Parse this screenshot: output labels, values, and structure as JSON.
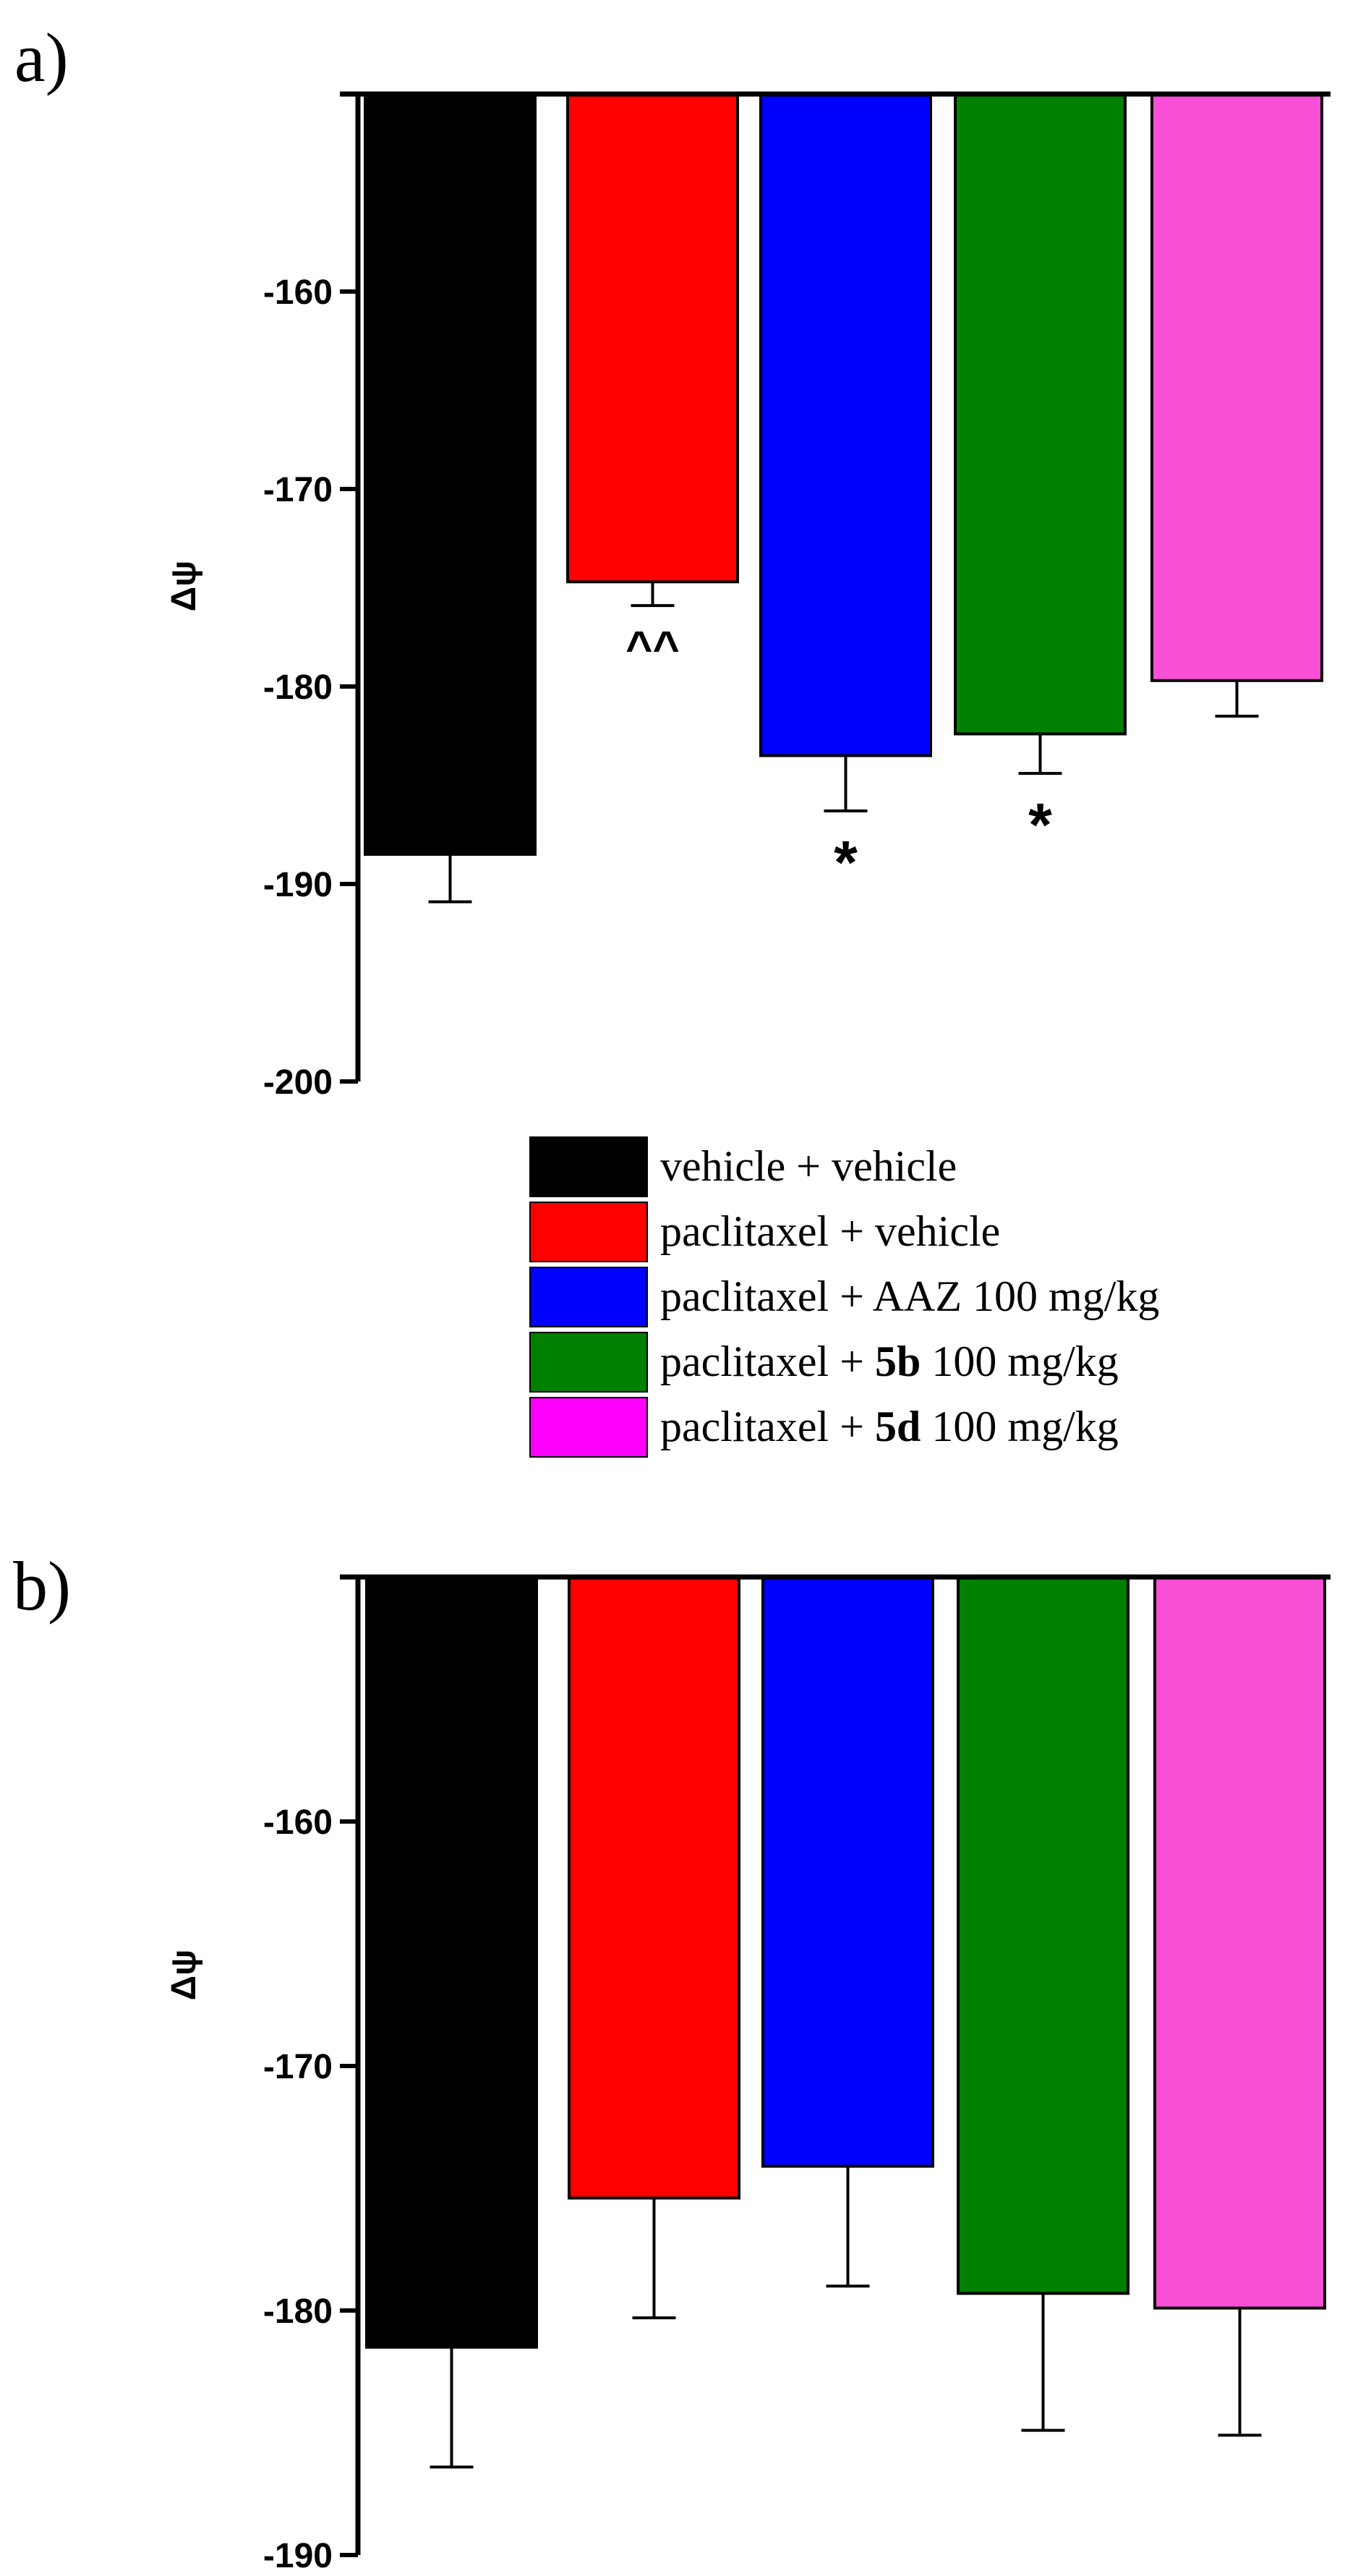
{
  "chart_data": [
    {
      "type": "bar",
      "panel_label": "a)",
      "ylabel": "Δψ",
      "ylim": [
        -200,
        -150
      ],
      "yticks": [
        -160,
        -170,
        -180,
        -190,
        -200
      ],
      "bars_hang_from": -150,
      "categories": [
        "vehicle + vehicle",
        "paclitaxel + vehicle",
        "paclitaxel + AAZ 100 mg/kg",
        "paclitaxel + 5b 100 mg/kg",
        "paclitaxel + 5d 100 mg/kg"
      ],
      "values": [
        -188.5,
        -174.7,
        -183.5,
        -182.4,
        -179.7
      ],
      "errors": [
        2.4,
        1.2,
        2.8,
        2.0,
        1.8
      ],
      "colors": [
        "#000000",
        "#ff0000",
        "#0000ff",
        "#008000",
        "#f94fd6"
      ],
      "annotations": [
        "",
        "^^",
        "*",
        "*",
        ""
      ]
    },
    {
      "type": "bar",
      "panel_label": "b)",
      "ylabel": "Δψ",
      "ylim": [
        -190,
        -150
      ],
      "yticks": [
        -160,
        -170,
        -180,
        -190
      ],
      "bars_hang_from": -150,
      "categories": [
        "vehicle + vehicle",
        "paclitaxel + vehicle",
        "paclitaxel + AAZ 100 mg/kg",
        "paclitaxel + 5b 100 mg/kg",
        "paclitaxel + 5d 100 mg/kg"
      ],
      "values": [
        -181.5,
        -175.4,
        -174.1,
        -179.3,
        -179.9
      ],
      "errors": [
        4.9,
        4.9,
        4.9,
        5.6,
        5.2
      ],
      "colors": [
        "#000000",
        "#ff0000",
        "#0000ff",
        "#008000",
        "#f94fd6"
      ],
      "annotations": [
        "",
        "",
        "",
        "",
        ""
      ]
    }
  ],
  "legend": {
    "entries": [
      {
        "prefix": "vehicle + vehicle",
        "bold": "",
        "suffix": "",
        "color": "#000000"
      },
      {
        "prefix": "paclitaxel + vehicle",
        "bold": "",
        "suffix": "",
        "color": "#ff0000"
      },
      {
        "prefix": "paclitaxel + AAZ 100 mg/kg",
        "bold": "",
        "suffix": "",
        "color": "#0000ff"
      },
      {
        "prefix": "paclitaxel + ",
        "bold": "5b",
        "suffix": " 100 mg/kg",
        "color": "#008000"
      },
      {
        "prefix": "paclitaxel + ",
        "bold": "5d",
        "suffix": " 100 mg/kg",
        "color": "#ff00ff"
      }
    ]
  }
}
